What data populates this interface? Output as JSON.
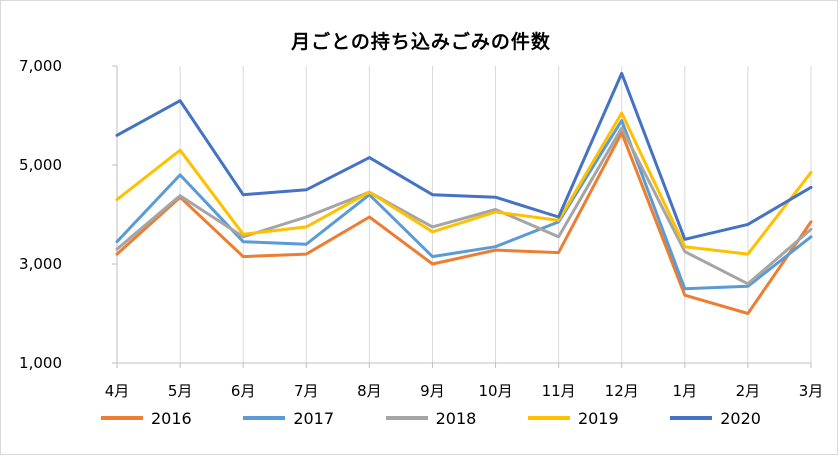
{
  "chart_data": {
    "type": "line",
    "title": "月ごとの持ち込みごみの件数",
    "xlabel": "",
    "ylabel": "",
    "categories": [
      "4月",
      "5月",
      "6月",
      "7月",
      "8月",
      "9月",
      "10月",
      "11月",
      "12月",
      "1月",
      "2月",
      "3月"
    ],
    "ylim": [
      1000,
      7000
    ],
    "yticks": [
      1000,
      3000,
      5000,
      7000
    ],
    "ytick_labels": [
      "1,000",
      "3,000",
      "5,000",
      "7,000"
    ],
    "grid": "vertical",
    "legend_position": "bottom",
    "series": [
      {
        "name": "2016",
        "color": "#ED7D31",
        "values": [
          3200,
          4350,
          3150,
          3200,
          3950,
          3000,
          3280,
          3230,
          5650,
          2370,
          2000,
          3850
        ]
      },
      {
        "name": "2017",
        "color": "#5B9BD5",
        "values": [
          3450,
          4800,
          3450,
          3400,
          4400,
          3150,
          3350,
          3850,
          5900,
          2500,
          2550,
          3550
        ]
      },
      {
        "name": "2018",
        "color": "#A5A5A5",
        "values": [
          3300,
          4380,
          3550,
          3950,
          4450,
          3750,
          4100,
          3550,
          5750,
          3250,
          2600,
          3700
        ]
      },
      {
        "name": "2019",
        "color": "#FFC000",
        "values": [
          4300,
          5300,
          3600,
          3750,
          4450,
          3650,
          4050,
          3880,
          6050,
          3350,
          3200,
          4850
        ]
      },
      {
        "name": "2020",
        "color": "#4472C4",
        "values": [
          5600,
          6300,
          4400,
          4500,
          5150,
          4400,
          4350,
          3950,
          6850,
          3500,
          3800,
          4550
        ]
      }
    ]
  }
}
